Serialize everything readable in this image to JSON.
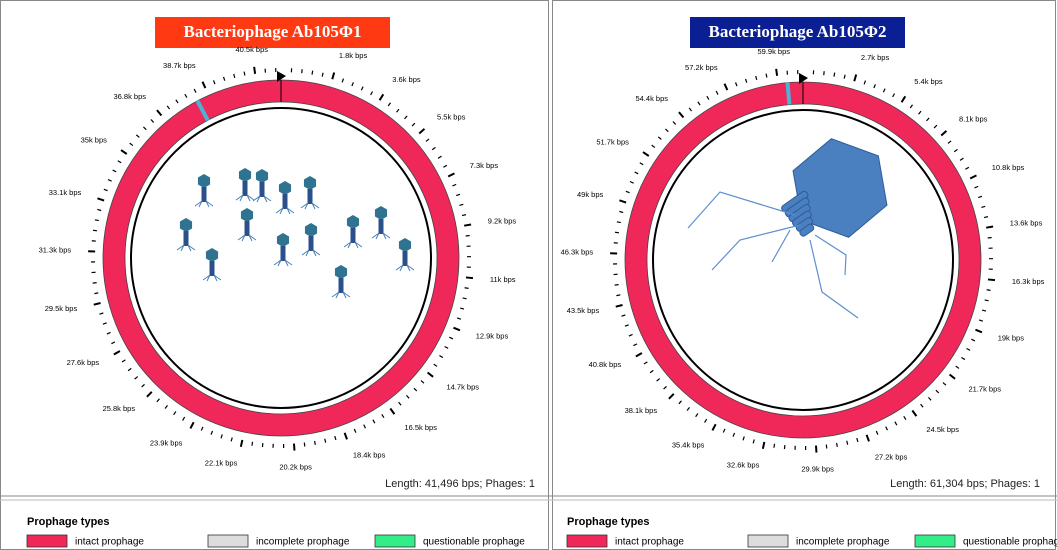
{
  "panels": [
    {
      "title": "Bacteriophage Ab105Φ1",
      "tick_labels": [
        "1.8k bps",
        "3.6k bps",
        "5.5k bps",
        "7.3k bps",
        "9.2k bps",
        "11k bps",
        "12.9k bps",
        "14.7k bps",
        "16.5k bps",
        "18.4k bps",
        "20.2k bps",
        "22.1k bps",
        "23.9k bps",
        "25.8k bps",
        "27.6k bps",
        "29.5k bps",
        "31.3k bps",
        "33.1k bps",
        "35k bps",
        "36.8k bps",
        "38.7k bps",
        "40.5k bps"
      ],
      "length_text": "Length: 41,496 bps; Phages: 1",
      "legend": {
        "title": "Prophage types",
        "items": [
          "intact prophage",
          "incomplete prophage",
          "questionable prophage"
        ]
      }
    },
    {
      "title": "Bacteriophage Ab105Φ2",
      "tick_labels": [
        "2.7k bps",
        "5.4k bps",
        "8.1k bps",
        "10.8k bps",
        "13.6k bps",
        "16.3k bps",
        "19k bps",
        "21.7k bps",
        "24.5k bps",
        "27.2k bps",
        "29.9k bps",
        "32.6k bps",
        "35.4k bps",
        "38.1k bps",
        "40.8k bps",
        "43.5k bps",
        "46.3k bps",
        "49k bps",
        "51.7k bps",
        "54.4k bps",
        "57.2k bps",
        "59.9k bps"
      ],
      "length_text": "Length: 61,304 bps; Phages: 1",
      "legend": {
        "title": "Prophage types",
        "items": [
          "intact prophage",
          "incomplete prophage",
          "questionable prophage"
        ]
      }
    }
  ]
}
